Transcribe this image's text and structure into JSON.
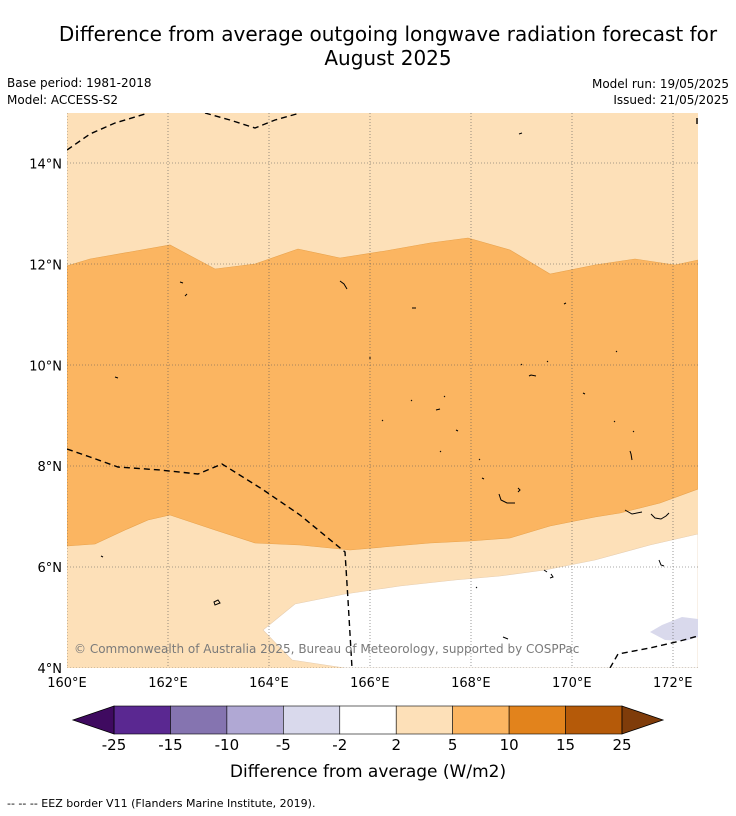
{
  "header": {
    "title_line1": "Difference from average outgoing longwave radiation forecast for",
    "title_line2": "August 2025",
    "base_period": "Base period: 1981-2018",
    "model": "Model: ACCESS-S2",
    "model_run": "Model run: 19/05/2025",
    "issued": "Issued: 21/05/2025"
  },
  "map": {
    "lon_labels": [
      "160°E",
      "162°E",
      "164°E",
      "166°E",
      "168°E",
      "170°E",
      "172°E"
    ],
    "lat_labels": [
      "14°N",
      "12°N",
      "10°N",
      "8°N",
      "6°N",
      "4°N"
    ],
    "lon_values": [
      160,
      162,
      164,
      166,
      168,
      170,
      172
    ],
    "lat_values": [
      14,
      12,
      10,
      8,
      6,
      4
    ],
    "extent": {
      "lon_min": 160,
      "lon_max": 172.5,
      "lat_min": 4,
      "lat_max": 15
    },
    "copyright": "© Commonwealth of Australia 2025, Bureau of Meteorology, supported by COSPPac"
  },
  "colorbar": {
    "title": "Difference from average (W/m2)",
    "ticks": [
      "-25",
      "-15",
      "-10",
      "-5",
      "-2",
      "2",
      "5",
      "10",
      "15",
      "25"
    ],
    "colors": [
      "#5a2891",
      "#8574b0",
      "#b0a8d4",
      "#d9d9ec",
      "#ffffff",
      "#fde0b8",
      "#fbb561",
      "#e2831c",
      "#b55a09"
    ],
    "under_color": "#3f0a60",
    "over_color": "#7f3c0a"
  },
  "footer": {
    "legend_text": "--  --  -- EEZ border V11 (Flanders Marine Institute, 2019)."
  }
}
